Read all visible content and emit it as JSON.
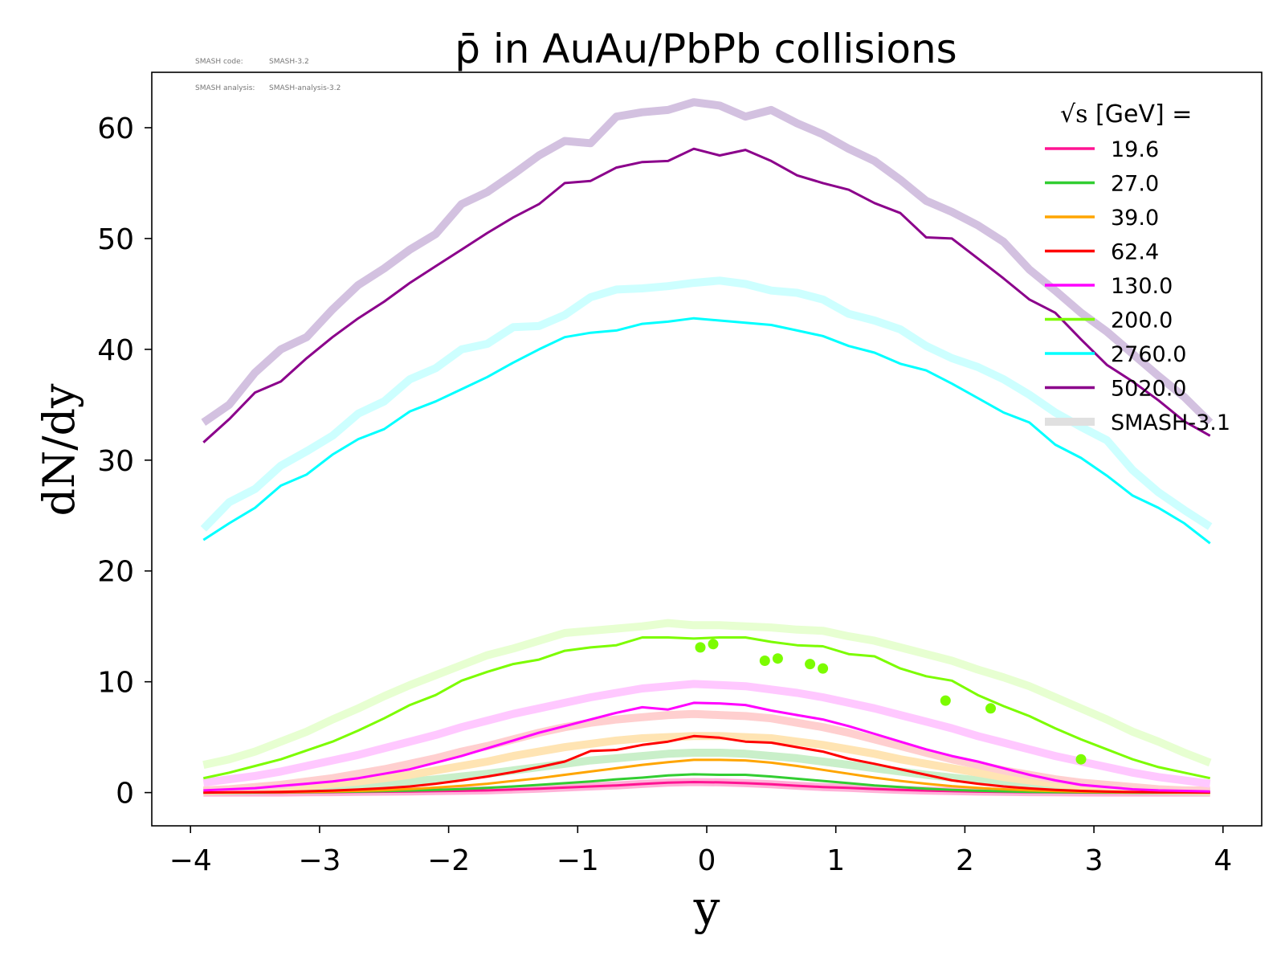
{
  "meta": {
    "code_label": "SMASH code:",
    "code_value": "SMASH-3.2",
    "analysis_label": "SMASH analysis:",
    "analysis_value": "SMASH-analysis-3.2"
  },
  "chart_data": {
    "type": "line",
    "title": "p̄ in AuAu/PbPb collisions",
    "xlabel": "y",
    "ylabel": "dN/dy",
    "xlim": [
      -4.3,
      4.3
    ],
    "ylim": [
      -3,
      65
    ],
    "xticks": [
      -4,
      -3,
      -2,
      -1,
      0,
      1,
      2,
      3,
      4
    ],
    "yticks": [
      0,
      10,
      20,
      30,
      40,
      50,
      60
    ],
    "grid": false,
    "legend": {
      "title_prefix": "√s",
      "title_suffix": "[GeV] =",
      "position": "top-right"
    },
    "x": [
      -3.9,
      -3.7,
      -3.5,
      -3.3,
      -3.1,
      -2.9,
      -2.7,
      -2.5,
      -2.3,
      -2.1,
      -1.9,
      -1.7,
      -1.5,
      -1.3,
      -1.1,
      -0.9,
      -0.7,
      -0.5,
      -0.3,
      -0.1,
      0.1,
      0.3,
      0.5,
      0.7,
      0.9,
      1.1,
      1.3,
      1.5,
      1.7,
      1.9,
      2.1,
      2.3,
      2.5,
      2.7,
      2.9,
      3.1,
      3.3,
      3.5,
      3.7,
      3.9
    ],
    "series": [
      {
        "name": "19.6",
        "color": "#ff1493",
        "values": [
          0.0,
          0.0,
          0.0,
          0.0,
          0.02,
          0.04,
          0.06,
          0.08,
          0.1,
          0.13,
          0.16,
          0.2,
          0.28,
          0.36,
          0.45,
          0.55,
          0.65,
          0.78,
          0.9,
          0.95,
          0.92,
          0.85,
          0.75,
          0.62,
          0.5,
          0.42,
          0.33,
          0.25,
          0.18,
          0.13,
          0.09,
          0.06,
          0.04,
          0.02,
          0.01,
          0.0,
          0.0,
          0.0,
          0.0,
          0.0
        ]
      },
      {
        "name": "27.0",
        "color": "#32cd32",
        "values": [
          0.0,
          0.0,
          0.01,
          0.02,
          0.04,
          0.06,
          0.09,
          0.13,
          0.18,
          0.24,
          0.32,
          0.42,
          0.55,
          0.7,
          0.85,
          1.0,
          1.2,
          1.35,
          1.55,
          1.65,
          1.6,
          1.6,
          1.45,
          1.25,
          1.05,
          0.85,
          0.65,
          0.5,
          0.35,
          0.25,
          0.17,
          0.11,
          0.07,
          0.04,
          0.02,
          0.01,
          0.0,
          0.0,
          0.0,
          0.0
        ]
      },
      {
        "name": "39.0",
        "color": "#ffa500",
        "values": [
          0.0,
          0.01,
          0.02,
          0.04,
          0.07,
          0.1,
          0.15,
          0.22,
          0.32,
          0.45,
          0.6,
          0.8,
          1.05,
          1.3,
          1.6,
          1.9,
          2.2,
          2.5,
          2.75,
          2.95,
          2.95,
          2.9,
          2.7,
          2.4,
          2.05,
          1.7,
          1.35,
          1.05,
          0.8,
          0.58,
          0.42,
          0.3,
          0.2,
          0.13,
          0.08,
          0.05,
          0.03,
          0.02,
          0.01,
          0.0
        ]
      },
      {
        "name": "62.4",
        "color": "#ff0000",
        "values": [
          0.0,
          0.02,
          0.04,
          0.07,
          0.12,
          0.18,
          0.28,
          0.4,
          0.55,
          0.8,
          1.1,
          1.45,
          1.85,
          2.3,
          2.8,
          3.75,
          3.85,
          4.3,
          4.6,
          5.1,
          4.95,
          4.6,
          4.5,
          4.1,
          3.7,
          3.05,
          2.6,
          2.1,
          1.6,
          1.1,
          0.8,
          0.55,
          0.38,
          0.25,
          0.15,
          0.09,
          0.05,
          0.03,
          0.02,
          0.01
        ]
      },
      {
        "name": "130.0",
        "color": "#ff00ff",
        "values": [
          0.2,
          0.3,
          0.4,
          0.6,
          0.8,
          1.0,
          1.3,
          1.7,
          2.1,
          2.7,
          3.3,
          4.0,
          4.7,
          5.4,
          6.0,
          6.6,
          7.2,
          7.7,
          7.5,
          8.1,
          8.05,
          7.9,
          7.4,
          7.0,
          6.6,
          6.0,
          5.3,
          4.6,
          3.9,
          3.3,
          2.8,
          2.2,
          1.6,
          1.1,
          0.7,
          0.5,
          0.3,
          0.2,
          0.15,
          0.1
        ]
      },
      {
        "name": "200.0",
        "color": "#7cfc00",
        "values": [
          1.3,
          1.8,
          2.4,
          3.0,
          3.8,
          4.6,
          5.6,
          6.7,
          7.9,
          8.8,
          10.1,
          10.9,
          11.6,
          12.0,
          12.8,
          13.1,
          13.3,
          14.0,
          14.0,
          13.9,
          14.0,
          14.0,
          13.6,
          13.3,
          13.2,
          12.5,
          12.3,
          11.2,
          10.5,
          10.1,
          8.8,
          7.8,
          6.9,
          5.8,
          4.8,
          3.9,
          3.0,
          2.3,
          1.8,
          1.3
        ]
      },
      {
        "name": "2760.0",
        "color": "#00ffff",
        "values": [
          22.8,
          24.3,
          25.7,
          27.7,
          28.7,
          30.5,
          31.9,
          32.8,
          34.4,
          35.3,
          36.4,
          37.5,
          38.8,
          40.0,
          41.1,
          41.5,
          41.7,
          42.3,
          42.5,
          42.8,
          42.6,
          42.4,
          42.2,
          41.7,
          41.2,
          40.3,
          39.7,
          38.7,
          38.1,
          36.9,
          35.6,
          34.3,
          33.4,
          31.4,
          30.2,
          28.6,
          26.8,
          25.7,
          24.3,
          22.5
        ]
      },
      {
        "name": "5020.0",
        "color": "#8b008b",
        "values": [
          31.6,
          33.7,
          36.1,
          37.1,
          39.2,
          41.1,
          42.8,
          44.3,
          46.0,
          47.5,
          49.0,
          50.5,
          51.9,
          53.1,
          55.0,
          55.2,
          56.4,
          56.9,
          57.0,
          58.1,
          57.5,
          58.0,
          57.0,
          55.7,
          55.0,
          54.4,
          53.2,
          52.3,
          50.1,
          50.0,
          48.2,
          46.4,
          44.5,
          43.3,
          40.9,
          38.6,
          37.1,
          35.4,
          33.5,
          32.2
        ]
      }
    ],
    "reference": {
      "name": "SMASH-3.1",
      "series": [
        {
          "name": "19.6",
          "color": "#ffb2d8",
          "values": [
            0.0,
            0.0,
            0.0,
            0.0,
            0.02,
            0.04,
            0.06,
            0.08,
            0.1,
            0.13,
            0.16,
            0.2,
            0.28,
            0.36,
            0.45,
            0.55,
            0.65,
            0.78,
            0.9,
            0.95,
            0.92,
            0.85,
            0.75,
            0.62,
            0.5,
            0.42,
            0.33,
            0.25,
            0.18,
            0.13,
            0.09,
            0.06,
            0.04,
            0.02,
            0.01,
            0.0,
            0.0,
            0.0,
            0.0,
            0.0
          ]
        },
        {
          "name": "27.0",
          "color": "#c9efc9",
          "values": [
            0.1,
            0.15,
            0.2,
            0.3,
            0.4,
            0.5,
            0.65,
            0.8,
            1.0,
            1.2,
            1.45,
            1.7,
            2.0,
            2.3,
            2.6,
            2.9,
            3.1,
            3.3,
            3.5,
            3.6,
            3.6,
            3.5,
            3.3,
            3.1,
            2.8,
            2.5,
            2.2,
            1.9,
            1.6,
            1.35,
            1.1,
            0.9,
            0.7,
            0.5,
            0.4,
            0.3,
            0.2,
            0.15,
            0.1,
            0.05
          ]
        },
        {
          "name": "39.0",
          "color": "#ffe4b3",
          "values": [
            0.1,
            0.2,
            0.3,
            0.4,
            0.6,
            0.8,
            1.0,
            1.3,
            1.6,
            2.0,
            2.4,
            2.8,
            3.3,
            3.7,
            4.1,
            4.4,
            4.7,
            4.9,
            5.0,
            5.1,
            5.1,
            5.0,
            4.9,
            4.6,
            4.3,
            3.9,
            3.5,
            3.0,
            2.6,
            2.2,
            1.8,
            1.4,
            1.1,
            0.8,
            0.6,
            0.4,
            0.3,
            0.2,
            0.15,
            0.1
          ]
        },
        {
          "name": "62.4",
          "color": "#ffcfcf",
          "values": [
            0.2,
            0.3,
            0.5,
            0.7,
            1.0,
            1.3,
            1.7,
            2.1,
            2.6,
            3.1,
            3.7,
            4.2,
            4.8,
            5.4,
            5.9,
            6.3,
            6.6,
            6.8,
            7.0,
            7.1,
            7.0,
            6.9,
            6.7,
            6.3,
            5.9,
            5.4,
            4.8,
            4.2,
            3.6,
            3.0,
            2.5,
            2.0,
            1.6,
            1.2,
            0.9,
            0.7,
            0.5,
            0.3,
            0.2,
            0.2
          ]
        },
        {
          "name": "130.0",
          "color": "#ffc8ff",
          "values": [
            0.9,
            1.2,
            1.5,
            1.9,
            2.4,
            2.9,
            3.4,
            4.0,
            4.6,
            5.2,
            5.9,
            6.5,
            7.1,
            7.6,
            8.1,
            8.6,
            9.0,
            9.4,
            9.6,
            9.8,
            9.7,
            9.6,
            9.3,
            9.0,
            8.6,
            8.1,
            7.6,
            7.0,
            6.4,
            5.8,
            5.1,
            4.5,
            3.9,
            3.3,
            2.8,
            2.3,
            1.8,
            1.4,
            1.1,
            0.8
          ]
        },
        {
          "name": "200.0",
          "color": "#e7ffd1",
          "values": [
            2.5,
            3.0,
            3.7,
            4.6,
            5.5,
            6.6,
            7.6,
            8.7,
            9.7,
            10.6,
            11.5,
            12.4,
            13.0,
            13.7,
            14.4,
            14.6,
            14.8,
            15.0,
            15.3,
            15.1,
            15.1,
            15.0,
            14.9,
            14.7,
            14.6,
            14.1,
            13.7,
            13.1,
            12.5,
            11.9,
            11.1,
            10.4,
            9.6,
            8.6,
            7.6,
            6.6,
            5.5,
            4.6,
            3.6,
            2.7
          ]
        },
        {
          "name": "2760.0",
          "color": "#cdffff",
          "values": [
            23.8,
            26.2,
            27.4,
            29.5,
            30.8,
            32.2,
            34.2,
            35.3,
            37.3,
            38.3,
            40.0,
            40.5,
            42.0,
            42.1,
            43.1,
            44.7,
            45.4,
            45.5,
            45.7,
            46.0,
            46.2,
            45.9,
            45.3,
            45.1,
            44.5,
            43.2,
            42.6,
            41.8,
            40.3,
            39.2,
            38.4,
            37.3,
            35.9,
            34.3,
            33.0,
            31.8,
            29.1,
            27.1,
            25.5,
            24.0
          ]
        },
        {
          "name": "5020.0",
          "color": "#d3c1e0",
          "values": [
            33.4,
            35.0,
            37.9,
            40.0,
            41.1,
            43.6,
            45.8,
            47.3,
            49.0,
            50.4,
            53.1,
            54.2,
            55.8,
            57.5,
            58.8,
            58.6,
            61.0,
            61.4,
            61.6,
            62.3,
            62.0,
            61.0,
            61.6,
            60.4,
            59.4,
            58.1,
            57.0,
            55.3,
            53.4,
            52.4,
            51.2,
            49.7,
            47.2,
            45.3,
            43.3,
            41.6,
            39.6,
            37.6,
            35.7,
            33.4
          ]
        }
      ]
    },
    "experimental": {
      "color": "#7cfc00",
      "points": [
        {
          "x": -0.05,
          "y": 13.1
        },
        {
          "x": 0.05,
          "y": 13.4
        },
        {
          "x": 0.45,
          "y": 11.9
        },
        {
          "x": 0.55,
          "y": 12.1
        },
        {
          "x": 0.8,
          "y": 11.6
        },
        {
          "x": 0.9,
          "y": 11.2
        },
        {
          "x": 1.85,
          "y": 8.3
        },
        {
          "x": 2.2,
          "y": 7.6
        },
        {
          "x": 2.9,
          "y": 3.0
        }
      ]
    }
  }
}
